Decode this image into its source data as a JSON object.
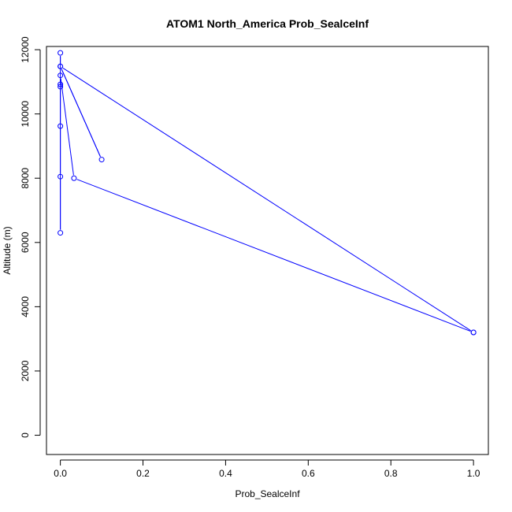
{
  "chart_data": {
    "type": "line",
    "title": "ATOM1 North_America Prob_SealceInf",
    "xlabel": "Prob_SealceInf",
    "ylabel": "Altitude (m)",
    "xlim": [
      -0.0336,
      1.036
    ],
    "ylim": [
      -600,
      12100
    ],
    "x_ticks": [
      0.0,
      0.2,
      0.4,
      0.6,
      0.8,
      1.0
    ],
    "x_tick_labels": [
      "0.0",
      "0.2",
      "0.4",
      "0.6",
      "0.8",
      "1.0"
    ],
    "y_ticks": [
      0,
      2000,
      4000,
      6000,
      8000,
      10000,
      12000
    ],
    "y_tick_labels": [
      "0",
      "2000",
      "4000",
      "6000",
      "8000",
      "10000",
      "12000"
    ],
    "grid": false,
    "series": [
      {
        "color": "#0000ff",
        "points": [
          {
            "x": 1.0,
            "y": 3200
          },
          {
            "x": 0.033,
            "y": 8000
          },
          {
            "x": 0.0,
            "y": 11200
          },
          {
            "x": 0.0,
            "y": 6300
          },
          {
            "x": 0.0,
            "y": 8050
          },
          {
            "x": 0.0,
            "y": 9620
          },
          {
            "x": 0.0,
            "y": 10850
          },
          {
            "x": 0.0,
            "y": 10920
          },
          {
            "x": 0.0,
            "y": 11900
          },
          {
            "x": 0.0,
            "y": 11480
          },
          {
            "x": 0.1,
            "y": 8580
          },
          {
            "x": 0.0,
            "y": 11480
          },
          {
            "x": 1.0,
            "y": 3200
          }
        ]
      }
    ]
  }
}
